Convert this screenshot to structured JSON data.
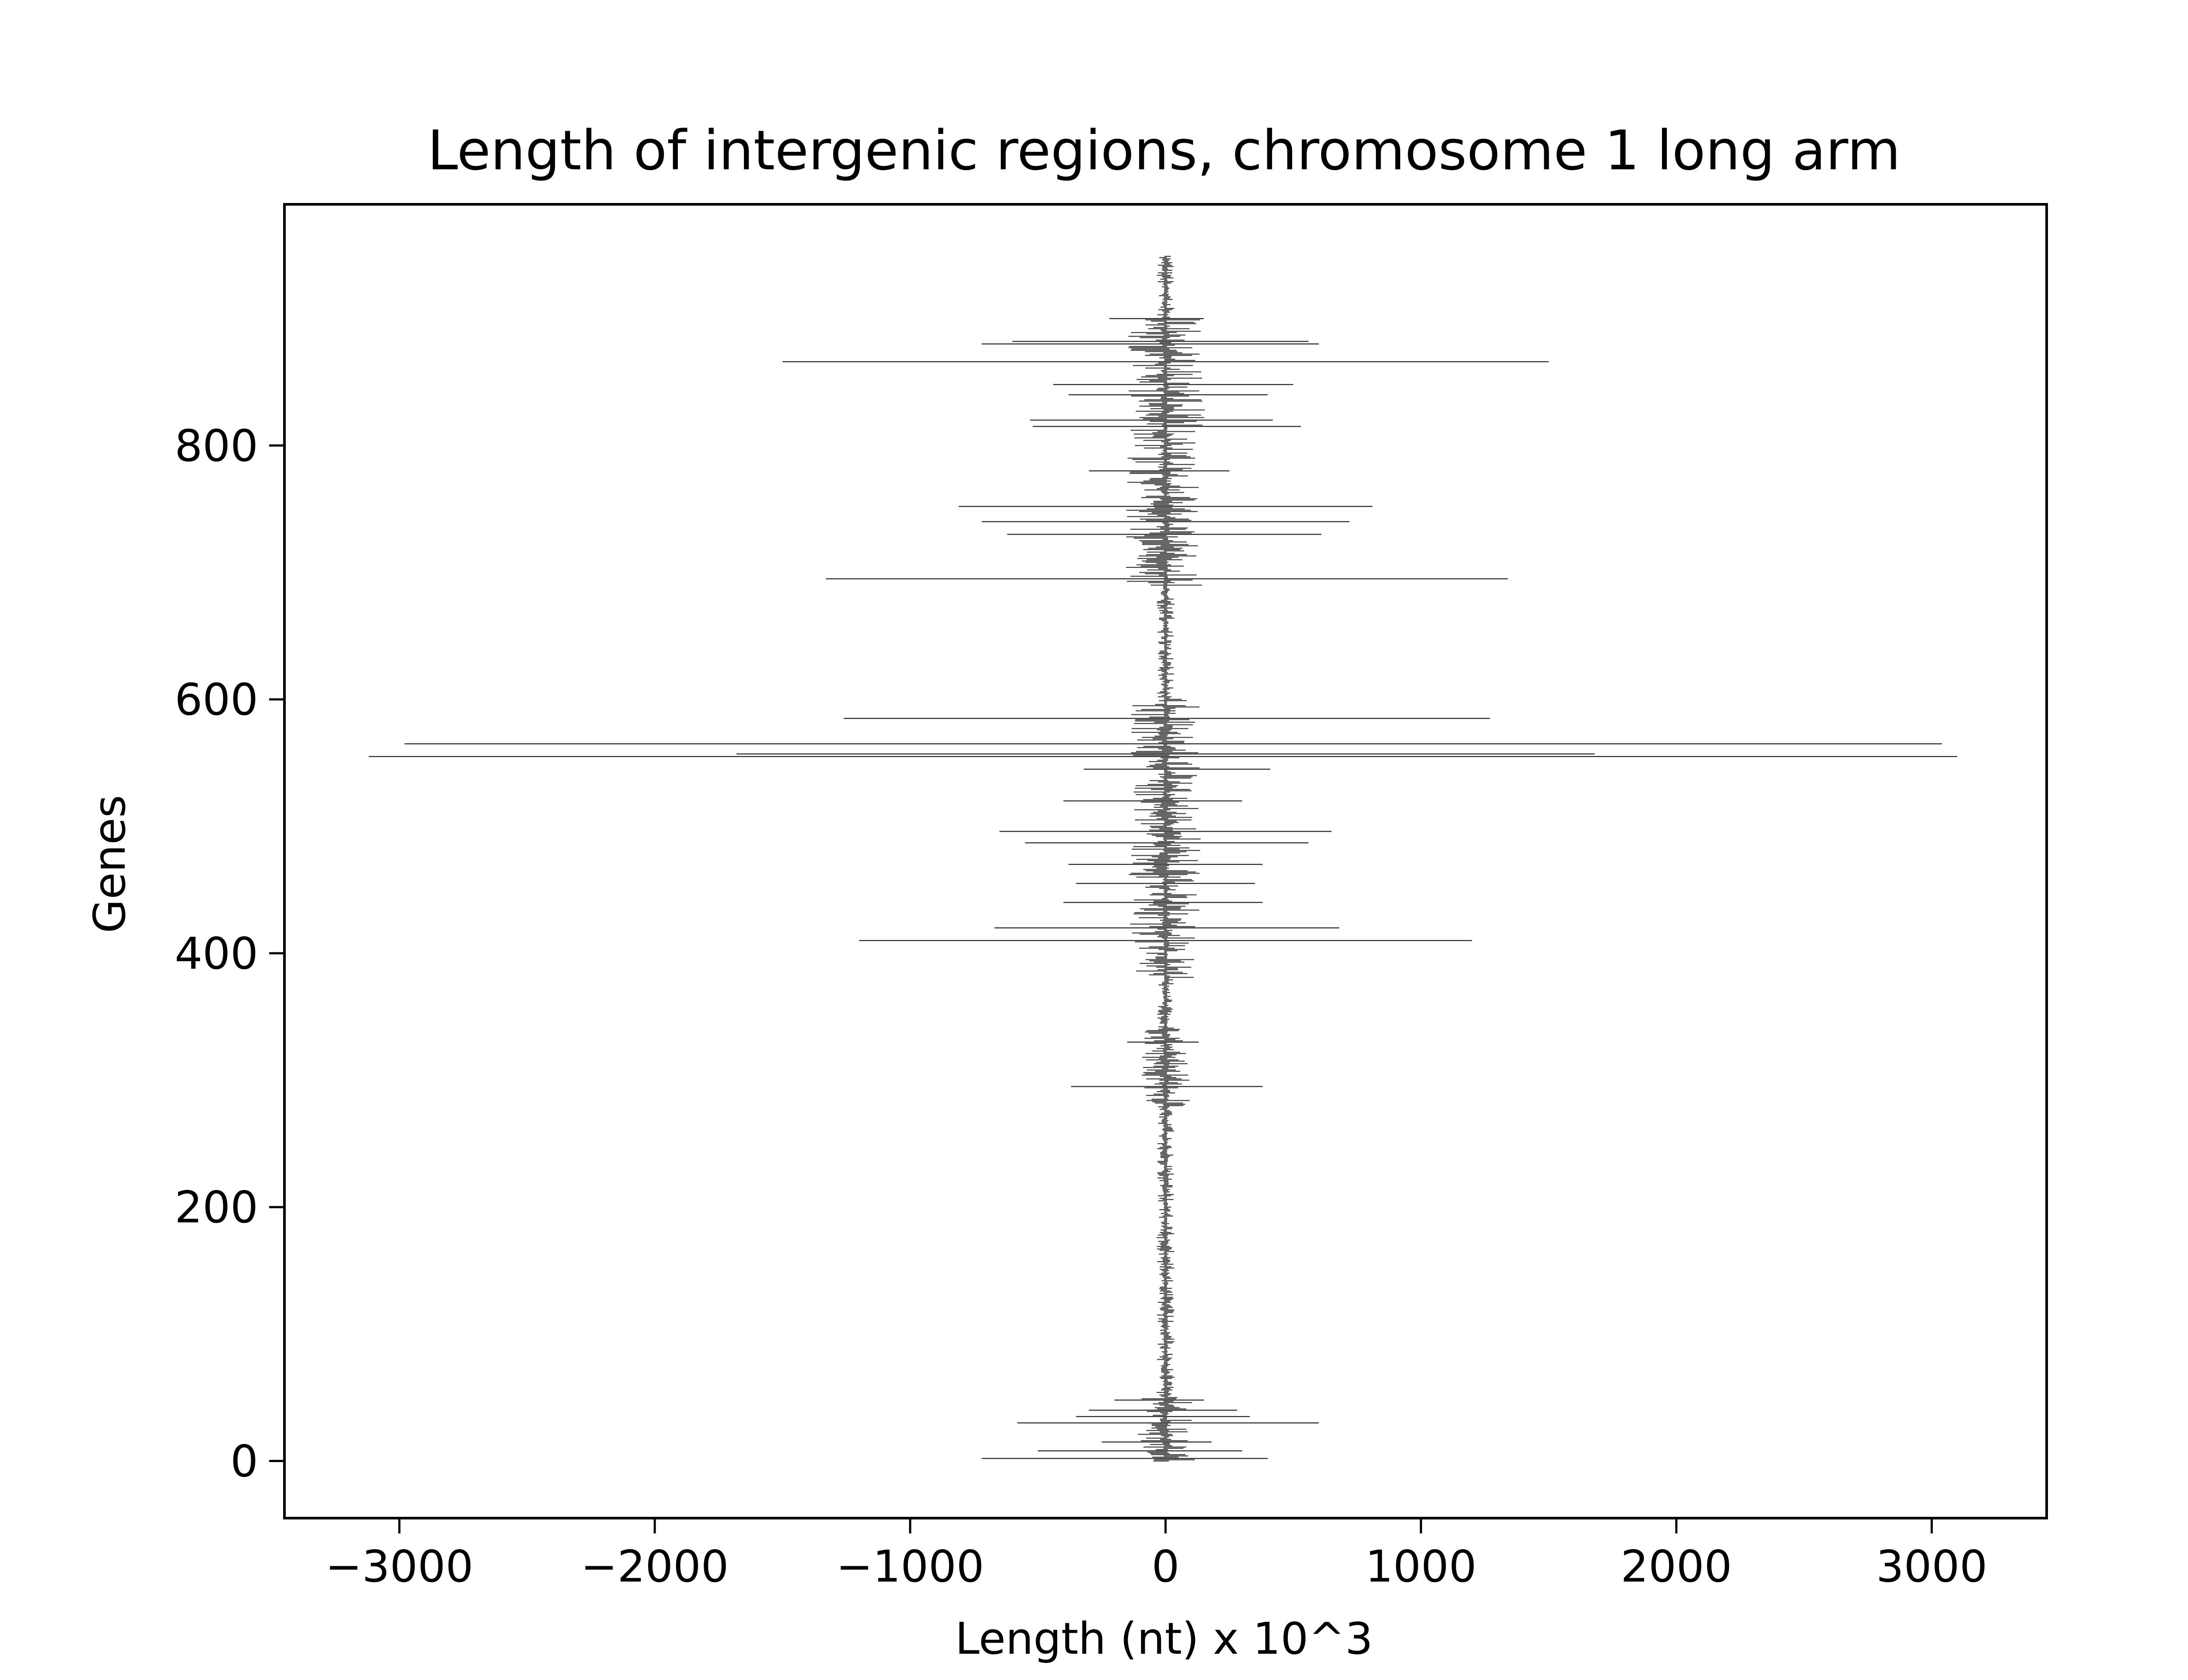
{
  "chart_data": {
    "type": "bar",
    "orientation": "horizontal",
    "title": "Length of intergenic regions, chromosome 1 long arm",
    "xlabel": "Length (nt) x 10^3",
    "ylabel": "Genes",
    "xlim": [
      -3450,
      3450
    ],
    "ylim": [
      -45,
      990
    ],
    "xticks": [
      -3000,
      -2000,
      -1000,
      0,
      1000,
      2000,
      3000
    ],
    "xtick_labels": [
      "−3000",
      "−2000",
      "−1000",
      "0",
      "1000",
      "2000",
      "3000"
    ],
    "yticks": [
      0,
      200,
      400,
      600,
      800
    ],
    "ytick_labels": [
      "0",
      "200",
      "400",
      "600",
      "800"
    ],
    "grid": false,
    "bar_color": "#000000",
    "gene_count": 950,
    "notable_regions": [
      {
        "gene": 2,
        "left": -720,
        "right": 400
      },
      {
        "gene": 8,
        "left": -500,
        "right": 300
      },
      {
        "gene": 15,
        "left": -250,
        "right": 180
      },
      {
        "gene": 30,
        "left": -580,
        "right": 600
      },
      {
        "gene": 35,
        "left": -350,
        "right": 330
      },
      {
        "gene": 40,
        "left": -300,
        "right": 280
      },
      {
        "gene": 48,
        "left": -200,
        "right": 150
      },
      {
        "gene": 295,
        "left": -370,
        "right": 380
      },
      {
        "gene": 330,
        "left": -150,
        "right": 130
      },
      {
        "gene": 410,
        "left": -1200,
        "right": 1200
      },
      {
        "gene": 420,
        "left": -670,
        "right": 680
      },
      {
        "gene": 440,
        "left": -400,
        "right": 380
      },
      {
        "gene": 455,
        "left": -350,
        "right": 350
      },
      {
        "gene": 470,
        "left": -380,
        "right": 380
      },
      {
        "gene": 487,
        "left": -550,
        "right": 560
      },
      {
        "gene": 496,
        "left": -650,
        "right": 650
      },
      {
        "gene": 520,
        "left": -400,
        "right": 300
      },
      {
        "gene": 545,
        "left": -320,
        "right": 410
      },
      {
        "gene": 555,
        "left": -3120,
        "right": 3100
      },
      {
        "gene": 557,
        "left": -1680,
        "right": 1680
      },
      {
        "gene": 565,
        "left": -2980,
        "right": 3040
      },
      {
        "gene": 585,
        "left": -1260,
        "right": 1270
      },
      {
        "gene": 695,
        "left": -1330,
        "right": 1340
      },
      {
        "gene": 730,
        "left": -620,
        "right": 610
      },
      {
        "gene": 740,
        "left": -720,
        "right": 720
      },
      {
        "gene": 752,
        "left": -810,
        "right": 810
      },
      {
        "gene": 780,
        "left": -300,
        "right": 250
      },
      {
        "gene": 815,
        "left": -520,
        "right": 530
      },
      {
        "gene": 820,
        "left": -530,
        "right": 420
      },
      {
        "gene": 840,
        "left": -380,
        "right": 400
      },
      {
        "gene": 848,
        "left": -440,
        "right": 500
      },
      {
        "gene": 866,
        "left": -1500,
        "right": 1500
      },
      {
        "gene": 880,
        "left": -720,
        "right": 600
      },
      {
        "gene": 882,
        "left": -600,
        "right": 560
      },
      {
        "gene": 900,
        "left": -220,
        "right": 150
      }
    ]
  }
}
